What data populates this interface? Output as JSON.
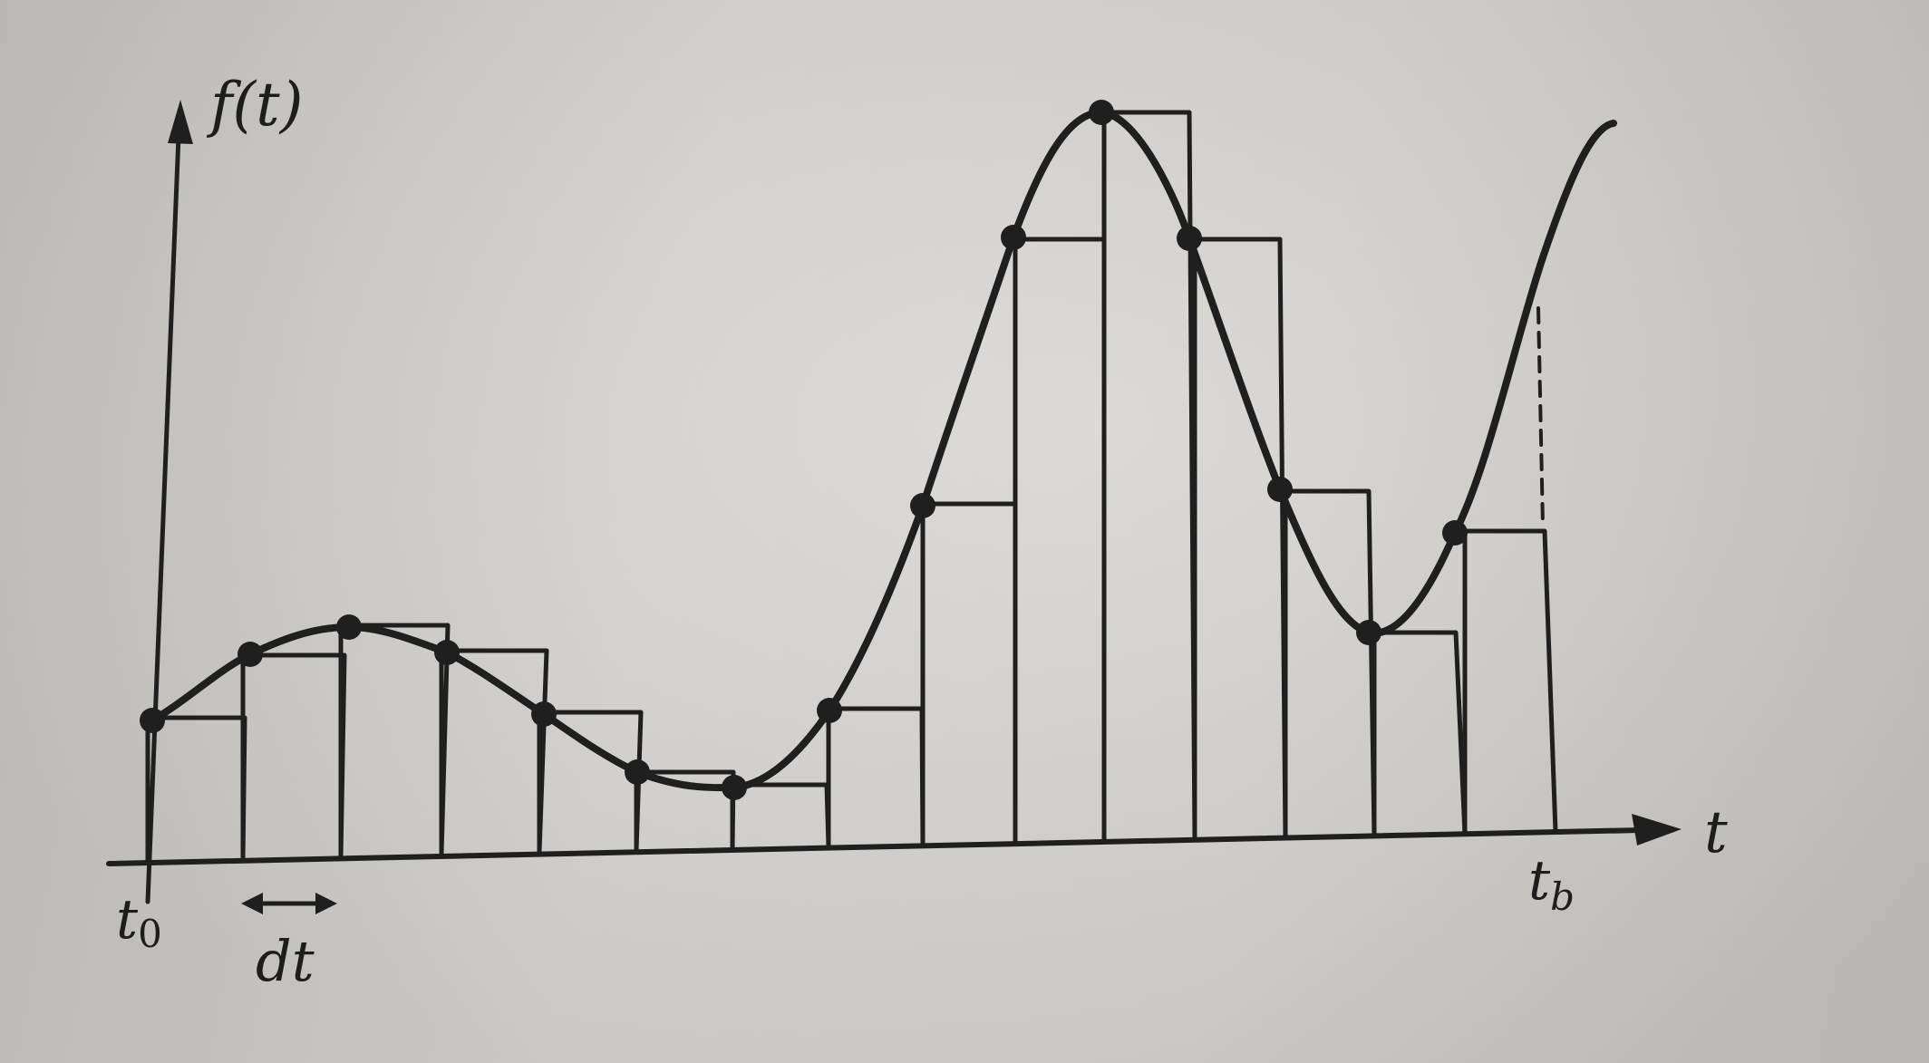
{
  "labels": {
    "y_axis": "f(t)",
    "x_axis": "t",
    "start": "t",
    "start_sub": "0",
    "end": "t",
    "end_sub": "b",
    "step": "dt"
  },
  "colors": {
    "ink": "#1f1f1f",
    "paper": "#d3d1ce"
  },
  "icons": {
    "step_marker": "double-arrow-icon",
    "axis_arrow": "arrowhead-icon"
  }
}
